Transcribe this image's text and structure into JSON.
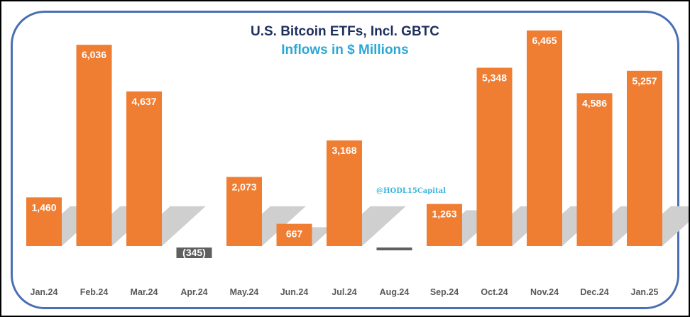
{
  "chart_data": {
    "type": "bar",
    "title": "U.S. Bitcoin ETFs, Incl. GBTC",
    "subtitle": "Inflows in $ Millions",
    "xlabel": "",
    "ylabel": "",
    "grid": false,
    "legend": null,
    "watermark": "@HODL15Capital",
    "categories": [
      "Jan.24",
      "Feb.24",
      "Mar.24",
      "Apr.24",
      "May.24",
      "Jun.24",
      "Jul.24",
      "Aug.24",
      "Sep.24",
      "Oct.24",
      "Nov.24",
      "Dec.24",
      "Jan.25"
    ],
    "values": [
      1460,
      6036,
      4637,
      -345,
      2073,
      667,
      3168,
      -80,
      1263,
      5348,
      6465,
      4586,
      5257
    ],
    "data_labels": [
      "1,460",
      "6,036",
      "4,637",
      "(345)",
      "2,073",
      "667",
      "3,168",
      null,
      "1,263",
      "5,348",
      "6,465",
      "4,586",
      "5,257"
    ],
    "ylim": [
      -400,
      6600
    ],
    "colors": {
      "positive": "#ef7d32",
      "negative": "#5f5f5f",
      "shadow": "#cfcfcf",
      "frame": "#4a6fb5",
      "title": "#1f2f5c",
      "subtitle": "#2aa7d6"
    }
  }
}
